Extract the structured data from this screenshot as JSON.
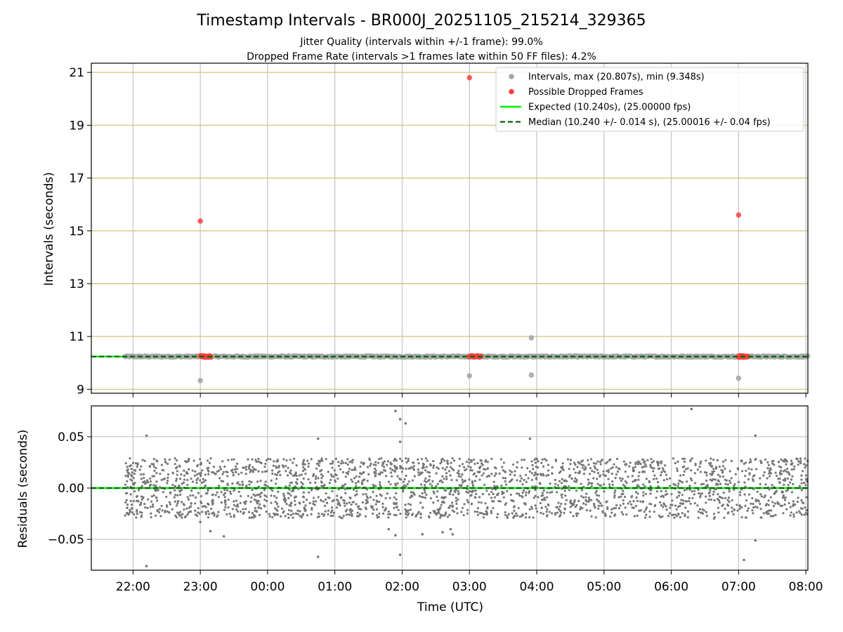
{
  "chart_data": {
    "type": "scatter",
    "title": "Timestamp Intervals - BR000J_20251105_215214_329365",
    "subtitle_lines": [
      "Jitter Quality (intervals within +/-1 frame): 99.0%",
      "Dropped Frame Rate (intervals >1 frames late within 50 FF files): 4.2%"
    ],
    "xlabel": "Time (UTC)",
    "x_unit": "hours since 22:00 UTC",
    "xlim": [
      -0.62,
      10.03
    ],
    "x_tick_values": [
      0,
      1,
      2,
      3,
      4,
      5,
      6,
      7,
      8,
      9,
      10
    ],
    "x_tick_labels": [
      "22:00",
      "23:00",
      "00:00",
      "01:00",
      "02:00",
      "03:00",
      "04:00",
      "05:00",
      "06:00",
      "07:00",
      "08:00"
    ],
    "colors": {
      "intervals": "#a6a6a6",
      "dropped": "#ff4040",
      "expected": "#00ee00",
      "median": "#006400",
      "residuals": "#777777",
      "h_grid_top": "#d2c47a",
      "grid": "#c8c8c8"
    },
    "top": {
      "ylabel": "Intervals (seconds)",
      "ylim": [
        8.85,
        21.35
      ],
      "yticks": [
        9,
        11,
        13,
        15,
        17,
        19,
        21
      ],
      "ytick_labels": [
        "9",
        "11",
        "13",
        "15",
        "17",
        "19",
        "21"
      ],
      "expected_value": 10.24,
      "median_value": 10.24,
      "band_x_range": [
        -0.12,
        10.03
      ],
      "band_value": 10.24,
      "interval_outliers": [
        {
          "x": 1.0,
          "y": 9.33
        },
        {
          "x": 5.0,
          "y": 9.51
        },
        {
          "x": 5.92,
          "y": 9.54
        },
        {
          "x": 5.92,
          "y": 10.95
        },
        {
          "x": 9.0,
          "y": 9.42
        }
      ],
      "dropped_points": [
        {
          "x": 1.0,
          "y": 15.37
        },
        {
          "x": 5.0,
          "y": 20.8
        },
        {
          "x": 9.0,
          "y": 15.6
        }
      ],
      "dropped_clusters": [
        {
          "x_start": 1.0,
          "x_end": 1.15,
          "y": 10.24
        },
        {
          "x_start": 5.0,
          "x_end": 5.17,
          "y": 10.24
        },
        {
          "x_start": 9.0,
          "x_end": 9.13,
          "y": 10.24
        }
      ],
      "legend": [
        {
          "label": "Intervals, max (20.807s), min (9.348s)",
          "kind": "marker",
          "color": "#a6a6a6"
        },
        {
          "label": "Possible Dropped Frames",
          "kind": "marker",
          "color": "#ff4040"
        },
        {
          "label": "Expected (10.240s), (25.00000 fps)",
          "kind": "line",
          "color": "#00ee00"
        },
        {
          "label": "Median (10.240 +/- 0.014 s), (25.00016 +/- 0.04 fps)",
          "kind": "dashed",
          "color": "#006400"
        }
      ],
      "legend_position": "top-right"
    },
    "bottom": {
      "ylabel": "Residuals (seconds)",
      "ylim": [
        -0.08,
        0.08
      ],
      "yticks": [
        -0.05,
        0.0,
        0.05
      ],
      "ytick_labels": [
        "−0.05",
        "0.00",
        "0.05"
      ],
      "residual_x_range": [
        -0.12,
        10.03
      ],
      "typical_band": [
        -0.03,
        0.03
      ],
      "outliers": [
        {
          "x": 0.2,
          "y": 0.051
        },
        {
          "x": 0.2,
          "y": -0.076
        },
        {
          "x": 1.0,
          "y": -0.033
        },
        {
          "x": 1.15,
          "y": -0.042
        },
        {
          "x": 1.35,
          "y": -0.047
        },
        {
          "x": 2.75,
          "y": 0.048
        },
        {
          "x": 2.75,
          "y": -0.067
        },
        {
          "x": 3.9,
          "y": 0.075
        },
        {
          "x": 3.97,
          "y": 0.067
        },
        {
          "x": 4.05,
          "y": 0.063
        },
        {
          "x": 3.97,
          "y": 0.045
        },
        {
          "x": 3.8,
          "y": -0.04
        },
        {
          "x": 3.9,
          "y": -0.046
        },
        {
          "x": 3.97,
          "y": -0.065
        },
        {
          "x": 4.3,
          "y": -0.045
        },
        {
          "x": 4.6,
          "y": -0.043
        },
        {
          "x": 4.72,
          "y": -0.04
        },
        {
          "x": 4.75,
          "y": -0.045
        },
        {
          "x": 5.9,
          "y": 0.048
        },
        {
          "x": 8.3,
          "y": 0.077
        },
        {
          "x": 9.08,
          "y": -0.07
        },
        {
          "x": 9.25,
          "y": 0.051
        },
        {
          "x": 9.25,
          "y": -0.051
        }
      ]
    }
  }
}
